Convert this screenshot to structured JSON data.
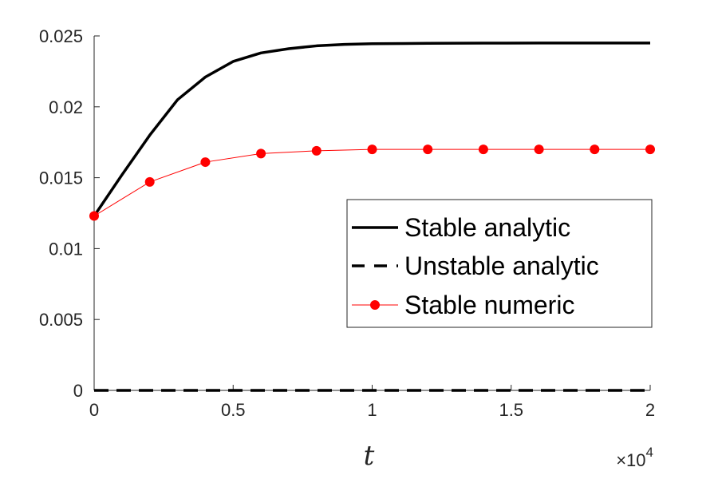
{
  "chart_data": {
    "type": "line",
    "title": "",
    "xlabel": "t",
    "ylabel": "",
    "x_exponent_label": {
      "base": "×10",
      "exponent": "4"
    },
    "xlim": [
      0,
      2
    ],
    "ylim": [
      0,
      0.025
    ],
    "x_ticks": [
      0,
      0.5,
      1,
      1.5,
      2
    ],
    "x_tick_labels": [
      "0",
      "0.5",
      "1",
      "1.5",
      "2"
    ],
    "y_ticks": [
      0,
      0.005,
      0.01,
      0.015,
      0.02,
      0.025
    ],
    "y_tick_labels": [
      "0",
      "0.005",
      "0.01",
      "0.015",
      "0.02",
      "0.025"
    ],
    "grid": false,
    "legend_position": "center-right",
    "series": [
      {
        "name": "Stable analytic",
        "style": "solid",
        "color": "#000000",
        "x": [
          0,
          0.1,
          0.2,
          0.3,
          0.4,
          0.5,
          0.6,
          0.7,
          0.8,
          0.9,
          1.0,
          1.2,
          1.4,
          1.6,
          1.8,
          2.0
        ],
        "y": [
          0.0123,
          0.0152,
          0.018,
          0.0205,
          0.0221,
          0.0232,
          0.0238,
          0.0241,
          0.0243,
          0.0244,
          0.02445,
          0.02448,
          0.02449,
          0.0245,
          0.0245,
          0.0245
        ]
      },
      {
        "name": "Unstable analytic",
        "style": "dashed",
        "color": "#000000",
        "x": [
          0,
          0.5,
          1.0,
          1.5,
          2.0
        ],
        "y": [
          0,
          0,
          0,
          0,
          0
        ]
      },
      {
        "name": "Stable numeric",
        "style": "solid-markers",
        "color": "#ff0000",
        "x": [
          0,
          0.2,
          0.4,
          0.6,
          0.8,
          1.0,
          1.2,
          1.4,
          1.6,
          1.8,
          2.0
        ],
        "y": [
          0.0123,
          0.0147,
          0.0161,
          0.0167,
          0.0169,
          0.017,
          0.017,
          0.017,
          0.017,
          0.017,
          0.017
        ]
      }
    ]
  }
}
